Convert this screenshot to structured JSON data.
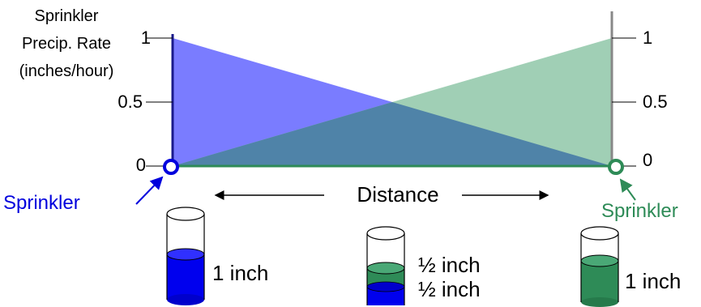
{
  "axis": {
    "title_lines": [
      "Sprinkler",
      "Precip. Rate",
      "(inches/hour)"
    ],
    "left_ticks": [
      "1",
      "0.5",
      "0"
    ],
    "right_ticks": [
      "1",
      "0.5",
      "0"
    ]
  },
  "distance_label": "Distance",
  "sprinklers": {
    "left_label": "Sprinkler",
    "right_label": "Sprinkler"
  },
  "cups": {
    "left_label": "1 inch",
    "middle_top_label": "½ inch",
    "middle_bottom_label": "½ inch",
    "right_label": "1 inch"
  },
  "colors": {
    "blue_sprinkler": "#0000dd",
    "green_sprinkler": "#2e8b57",
    "blue_fill": "#7a7cff",
    "green_fill": "#a0cfb5",
    "overlap_fill": "#4f83a8"
  }
}
